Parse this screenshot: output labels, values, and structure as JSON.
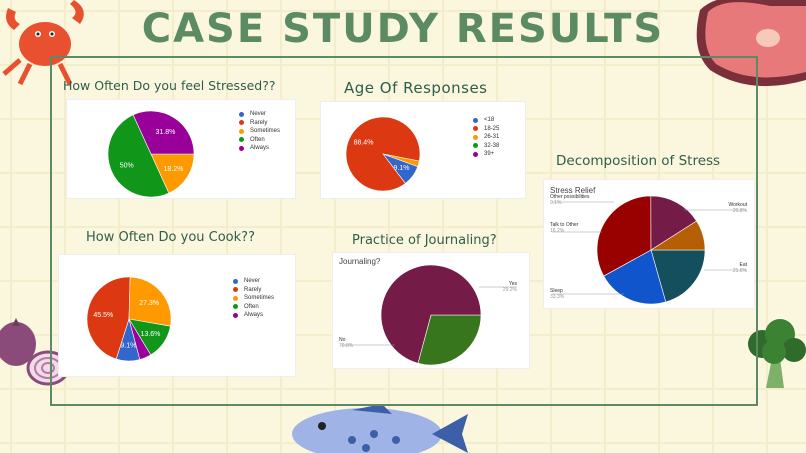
{
  "page": {
    "title": "CASE STUDY RESULTS"
  },
  "colors": {
    "background": "#fbf7df",
    "title": "#5b8a63",
    "heading": "#2f5d4b",
    "frame": "#5b8a63"
  },
  "decorations": [
    "crab-icon",
    "steak-icon",
    "onion-icon",
    "broccoli-icon",
    "fish-icon"
  ],
  "chart_data": [
    {
      "id": "stress",
      "type": "pie",
      "title": "How Often Do you feel Stressed??",
      "categories": [
        "Never",
        "Rarely",
        "Sometimes",
        "Often",
        "Always"
      ],
      "colors": [
        "#3366cc",
        "#dc3912",
        "#ff9900",
        "#109618",
        "#990099"
      ],
      "values": [
        0,
        0,
        18.2,
        50,
        31.8
      ],
      "labels": [
        "",
        "",
        "18.2%",
        "50%",
        "31.8%"
      ]
    },
    {
      "id": "age",
      "type": "pie",
      "title": "Age Of Responses",
      "categories": [
        "<18",
        "18-25",
        "26-31",
        "32-38",
        "39+"
      ],
      "colors": [
        "#3366cc",
        "#dc3912",
        "#ff9900",
        "#109618",
        "#990099"
      ],
      "values": [
        9.1,
        88.4,
        2.5,
        0,
        0
      ],
      "labels": [
        "9.1%",
        "88.4%",
        "",
        "",
        ""
      ]
    },
    {
      "id": "cook",
      "type": "pie",
      "title": "How Often Do you Cook??",
      "categories": [
        "Never",
        "Rarely",
        "Sometimes",
        "Often",
        "Always"
      ],
      "colors": [
        "#3366cc",
        "#dc3912",
        "#ff9900",
        "#109618",
        "#990099"
      ],
      "values": [
        9.1,
        45.5,
        27.3,
        13.6,
        4.5
      ],
      "labels": [
        "9.1%",
        "45.5%",
        "27.3%",
        "13.6%",
        ""
      ]
    },
    {
      "id": "journal",
      "type": "pie",
      "title": "Practice of Journaling?",
      "chart_title": "Journaling?",
      "categories": [
        "Yes",
        "No"
      ],
      "colors": [
        "#38761d",
        "#741b47"
      ],
      "values": [
        29.2,
        70.8
      ],
      "callouts": [
        {
          "name": "Yes",
          "value": "29.2%"
        },
        {
          "name": "No",
          "value": "70.8%"
        }
      ]
    },
    {
      "id": "relief",
      "type": "pie",
      "title": "Decomposition of Stress",
      "chart_title": "Stress Relief",
      "categories": [
        "Workout",
        "Eat",
        "Sleep",
        "Talk to Other",
        "Other possibilities"
      ],
      "colors": [
        "#134f5c",
        "#1155cc",
        "#990000",
        "#741b47",
        "#b45f06"
      ],
      "values": [
        20.8,
        21.6,
        33.3,
        16.2,
        9.1
      ],
      "callouts": [
        {
          "name": "Workout",
          "value": "20.8%"
        },
        {
          "name": "Eat",
          "value": "21.6%"
        },
        {
          "name": "Sleep",
          "value": "33.3%"
        },
        {
          "name": "Talk to Other",
          "value": "16.2%"
        },
        {
          "name": "Other possibilities",
          "value": "9.1%"
        }
      ]
    }
  ]
}
